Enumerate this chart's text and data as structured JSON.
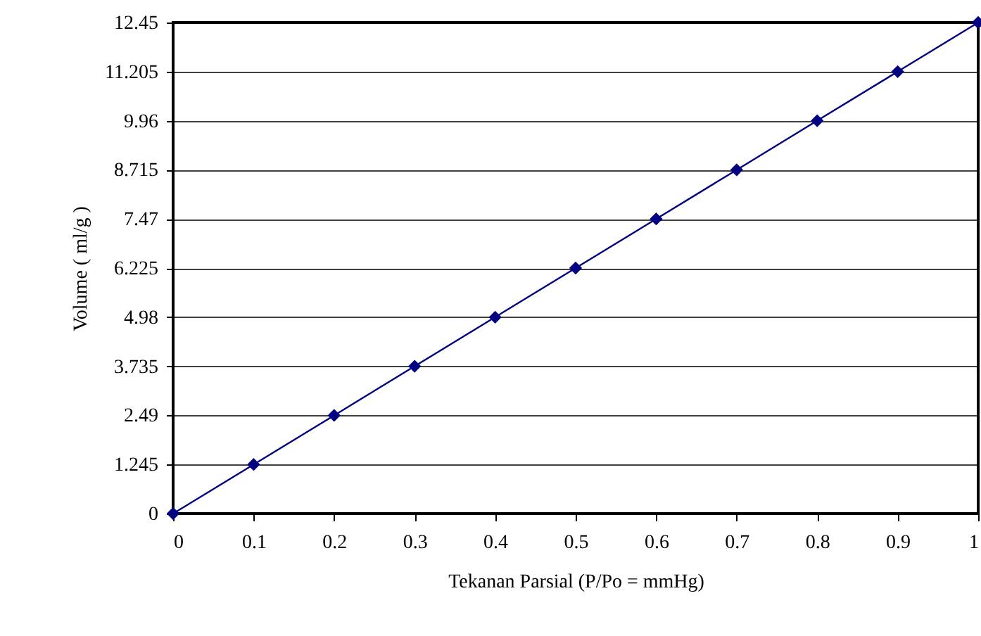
{
  "chart_data": {
    "type": "line",
    "xlabel": "Tekanan Parsial (P/Po = mmHg)",
    "ylabel": "Volume ( ml/g )",
    "x": [
      0,
      0.1,
      0.2,
      0.3,
      0.4,
      0.5,
      0.6,
      0.7,
      0.8,
      0.9,
      1
    ],
    "series": [
      {
        "color": "#000080",
        "values": [
          0,
          1.245,
          2.49,
          3.735,
          4.98,
          6.225,
          7.47,
          8.715,
          9.96,
          11.205,
          12.45
        ]
      }
    ],
    "xlim": [
      0,
      1
    ],
    "xticks": [
      0,
      0.1,
      0.2,
      0.3,
      0.4,
      0.5,
      0.6,
      0.7,
      0.8,
      0.9,
      1
    ],
    "ylim": [
      0,
      12.45
    ],
    "yticks": [
      0,
      1.245,
      2.49,
      3.735,
      4.98,
      6.225,
      7.47,
      8.715,
      9.96,
      11.205,
      12.45
    ],
    "grid": "y",
    "marker": "diamond",
    "line_style": "solid"
  }
}
